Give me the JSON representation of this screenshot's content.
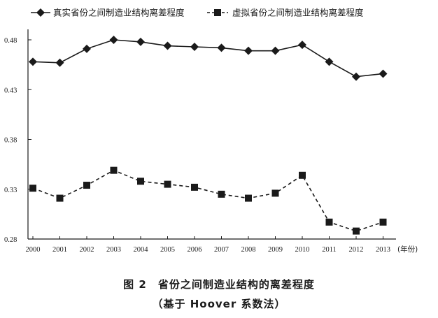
{
  "chart_data": {
    "type": "line",
    "x": [
      "2000",
      "2001",
      "2002",
      "2003",
      "2004",
      "2005",
      "2006",
      "2007",
      "2008",
      "2009",
      "2010",
      "2011",
      "2012",
      "2013"
    ],
    "x_unit": "(年份)",
    "y_ticks": [
      "0.48",
      "0.43",
      "0.38",
      "0.33",
      "0.28"
    ],
    "ylim": [
      0.28,
      0.49
    ],
    "grid": false,
    "legend_position": "top",
    "series": [
      {
        "name": "真实省份之间制造业结构离差程度",
        "marker": "diamond",
        "line_style": "solid",
        "color": "#1a1a1a",
        "values": [
          0.458,
          0.457,
          0.471,
          0.48,
          0.478,
          0.474,
          0.473,
          0.472,
          0.469,
          0.469,
          0.475,
          0.458,
          0.443,
          0.446
        ]
      },
      {
        "name": "虚拟省份之间制造业结构离差程度",
        "marker": "square",
        "line_style": "dashed",
        "color": "#1a1a1a",
        "values": [
          0.331,
          0.321,
          0.334,
          0.349,
          0.338,
          0.335,
          0.332,
          0.325,
          0.321,
          0.326,
          0.344,
          0.297,
          0.288,
          0.297
        ]
      }
    ]
  },
  "caption": {
    "line1": "图 2　省份之间制造业结构的离差程度",
    "line2": "（基于 Hoover 系数法）"
  }
}
